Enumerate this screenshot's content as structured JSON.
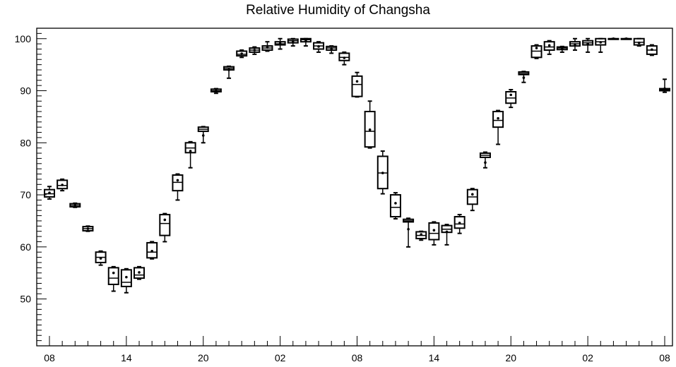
{
  "chart_data": {
    "type": "box",
    "title": "Relative Humidity of Changsha",
    "xlabel": "",
    "ylabel": "",
    "ylim": [
      41,
      102
    ],
    "y_ticks": [
      50,
      60,
      70,
      80,
      90,
      100
    ],
    "x_ticks": [
      {
        "slot": 0,
        "label": "08"
      },
      {
        "slot": 6,
        "label": "14"
      },
      {
        "slot": 12,
        "label": "20"
      },
      {
        "slot": 18,
        "label": "02"
      },
      {
        "slot": 24,
        "label": "08"
      },
      {
        "slot": 30,
        "label": "14"
      },
      {
        "slot": 36,
        "label": "20"
      },
      {
        "slot": 42,
        "label": "02"
      },
      {
        "slot": 48,
        "label": "08"
      }
    ],
    "grid": false,
    "boxes": [
      {
        "slot": 0,
        "min": 69.2,
        "q1": 69.6,
        "median": 70.2,
        "q3": 71.0,
        "max": 71.6,
        "mean": 70.4
      },
      {
        "slot": 1,
        "min": 70.8,
        "q1": 71.2,
        "median": 71.8,
        "q3": 72.8,
        "max": 73.0,
        "mean": 71.9
      },
      {
        "slot": 2,
        "min": 67.6,
        "q1": 67.7,
        "median": 68.0,
        "q3": 68.3,
        "max": 68.4,
        "mean": 68.0
      },
      {
        "slot": 3,
        "min": 63.0,
        "q1": 63.1,
        "median": 63.5,
        "q3": 63.9,
        "max": 64.0,
        "mean": 63.5
      },
      {
        "slot": 4,
        "min": 56.5,
        "q1": 57.0,
        "median": 58.0,
        "q3": 59.0,
        "max": 59.2,
        "mean": 57.8
      },
      {
        "slot": 5,
        "min": 51.5,
        "q1": 52.8,
        "median": 54.0,
        "q3": 56.0,
        "max": 56.2,
        "mean": 55.0
      },
      {
        "slot": 6,
        "min": 51.2,
        "q1": 52.4,
        "median": 53.2,
        "q3": 55.6,
        "max": 55.8,
        "mean": 54.2
      },
      {
        "slot": 7,
        "min": 53.8,
        "q1": 54.0,
        "median": 54.6,
        "q3": 56.0,
        "max": 56.2,
        "mean": 55.1
      },
      {
        "slot": 8,
        "min": 57.7,
        "q1": 57.9,
        "median": 59.0,
        "q3": 60.8,
        "max": 61.0,
        "mean": 59.2
      },
      {
        "slot": 9,
        "min": 61.0,
        "q1": 62.2,
        "median": 64.5,
        "q3": 66.2,
        "max": 66.4,
        "mean": 65.2
      },
      {
        "slot": 10,
        "min": 69.0,
        "q1": 70.8,
        "median": 72.4,
        "q3": 73.8,
        "max": 74.0,
        "mean": 72.8
      },
      {
        "slot": 11,
        "min": 75.2,
        "q1": 78.1,
        "median": 79.0,
        "q3": 80.0,
        "max": 80.2,
        "mean": 78.4
      },
      {
        "slot": 12,
        "min": 80.0,
        "q1": 82.2,
        "median": 82.6,
        "q3": 83.0,
        "max": 83.1,
        "mean": 81.4
      },
      {
        "slot": 13,
        "min": 89.5,
        "q1": 89.8,
        "median": 90.0,
        "q3": 90.3,
        "max": 90.4,
        "mean": 90.0
      },
      {
        "slot": 14,
        "min": 92.4,
        "q1": 94.0,
        "median": 94.3,
        "q3": 94.6,
        "max": 94.7,
        "mean": 94.0
      },
      {
        "slot": 15,
        "min": 96.4,
        "q1": 96.7,
        "median": 97.0,
        "q3": 97.6,
        "max": 97.8,
        "mean": 97.1
      },
      {
        "slot": 16,
        "min": 97.0,
        "q1": 97.4,
        "median": 97.8,
        "q3": 98.2,
        "max": 98.4,
        "mean": 97.8
      },
      {
        "slot": 17,
        "min": 97.6,
        "q1": 97.8,
        "median": 98.2,
        "q3": 98.6,
        "max": 99.4,
        "mean": 98.3
      },
      {
        "slot": 18,
        "min": 98.0,
        "q1": 98.8,
        "median": 99.0,
        "q3": 99.4,
        "max": 100.0,
        "mean": 99.1
      },
      {
        "slot": 19,
        "min": 98.6,
        "q1": 99.2,
        "median": 99.6,
        "q3": 99.9,
        "max": 100.0,
        "mean": 99.5
      },
      {
        "slot": 20,
        "min": 98.6,
        "q1": 99.4,
        "median": 99.8,
        "q3": 100.0,
        "max": 100.0,
        "mean": 99.6
      },
      {
        "slot": 21,
        "min": 97.4,
        "q1": 98.0,
        "median": 98.6,
        "q3": 99.2,
        "max": 99.4,
        "mean": 98.5
      },
      {
        "slot": 22,
        "min": 97.2,
        "q1": 97.8,
        "median": 98.2,
        "q3": 98.5,
        "max": 98.6,
        "mean": 98.1
      },
      {
        "slot": 23,
        "min": 95.0,
        "q1": 95.8,
        "median": 96.4,
        "q3": 97.2,
        "max": 97.4,
        "mean": 96.3
      },
      {
        "slot": 24,
        "min": 88.8,
        "q1": 88.9,
        "median": 91.2,
        "q3": 92.8,
        "max": 93.5,
        "mean": 91.8
      },
      {
        "slot": 25,
        "min": 79.0,
        "q1": 79.2,
        "median": 82.2,
        "q3": 86.0,
        "max": 88.0,
        "mean": 82.5
      },
      {
        "slot": 26,
        "min": 70.2,
        "q1": 71.2,
        "median": 74.2,
        "q3": 77.4,
        "max": 78.4,
        "mean": 74.2
      },
      {
        "slot": 27,
        "min": 65.4,
        "q1": 65.8,
        "median": 67.6,
        "q3": 70.0,
        "max": 70.4,
        "mean": 68.4
      },
      {
        "slot": 28,
        "min": 60.0,
        "q1": 64.8,
        "median": 65.0,
        "q3": 65.3,
        "max": 65.5,
        "mean": 63.4
      },
      {
        "slot": 29,
        "min": 61.3,
        "q1": 61.6,
        "median": 62.2,
        "q3": 62.9,
        "max": 63.0,
        "mean": 62.4
      },
      {
        "slot": 30,
        "min": 60.4,
        "q1": 61.4,
        "median": 62.6,
        "q3": 64.6,
        "max": 64.8,
        "mean": 63.2
      },
      {
        "slot": 31,
        "min": 60.4,
        "q1": 62.8,
        "median": 63.4,
        "q3": 64.1,
        "max": 64.3,
        "mean": 62.9
      },
      {
        "slot": 32,
        "min": 62.6,
        "q1": 63.6,
        "median": 64.4,
        "q3": 65.8,
        "max": 66.2,
        "mean": 64.6
      },
      {
        "slot": 33,
        "min": 67.0,
        "q1": 68.2,
        "median": 69.6,
        "q3": 71.0,
        "max": 71.2,
        "mean": 70.1
      },
      {
        "slot": 34,
        "min": 75.2,
        "q1": 77.2,
        "median": 77.6,
        "q3": 78.0,
        "max": 78.2,
        "mean": 76.2
      },
      {
        "slot": 35,
        "min": 79.7,
        "q1": 83.0,
        "median": 84.3,
        "q3": 86.0,
        "max": 86.2,
        "mean": 84.7
      },
      {
        "slot": 36,
        "min": 86.8,
        "q1": 87.6,
        "median": 88.6,
        "q3": 89.8,
        "max": 90.2,
        "mean": 89.2
      },
      {
        "slot": 37,
        "min": 91.6,
        "q1": 93.1,
        "median": 93.3,
        "q3": 93.6,
        "max": 93.7,
        "mean": 92.5
      },
      {
        "slot": 38,
        "min": 96.2,
        "q1": 96.4,
        "median": 97.6,
        "q3": 98.6,
        "max": 98.8,
        "mean": 98.2
      },
      {
        "slot": 39,
        "min": 97.0,
        "q1": 97.8,
        "median": 98.4,
        "q3": 99.4,
        "max": 99.6,
        "mean": 98.7
      },
      {
        "slot": 40,
        "min": 97.4,
        "q1": 97.9,
        "median": 98.2,
        "q3": 98.4,
        "max": 98.5,
        "mean": 98.0
      },
      {
        "slot": 41,
        "min": 97.8,
        "q1": 98.6,
        "median": 99.0,
        "q3": 99.4,
        "max": 100.0,
        "mean": 98.9
      },
      {
        "slot": 42,
        "min": 97.4,
        "q1": 98.8,
        "median": 99.2,
        "q3": 99.6,
        "max": 100.0,
        "mean": 99.0
      },
      {
        "slot": 43,
        "min": 97.4,
        "q1": 98.8,
        "median": 99.4,
        "q3": 100.0,
        "max": 100.0,
        "mean": 99.3
      },
      {
        "slot": 44,
        "min": 100.0,
        "q1": 100.0,
        "median": 100.0,
        "q3": 100.0,
        "max": 100.0,
        "mean": 100.0
      },
      {
        "slot": 45,
        "min": 100.0,
        "q1": 100.0,
        "median": 100.0,
        "q3": 100.0,
        "max": 100.0,
        "mean": 100.0
      },
      {
        "slot": 46,
        "min": 98.6,
        "q1": 98.8,
        "median": 99.3,
        "q3": 100.0,
        "max": 100.0,
        "mean": 99.2
      },
      {
        "slot": 47,
        "min": 96.8,
        "q1": 97.0,
        "median": 97.8,
        "q3": 98.6,
        "max": 98.8,
        "mean": 97.9
      },
      {
        "slot": 48,
        "min": 89.7,
        "q1": 90.0,
        "median": 90.2,
        "q3": 90.4,
        "max": 92.2,
        "mean": 90.4
      }
    ]
  }
}
